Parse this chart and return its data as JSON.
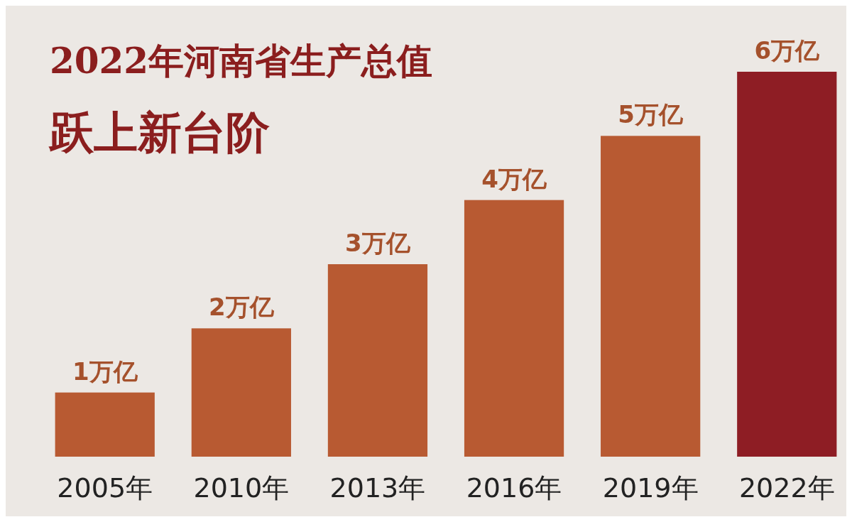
{
  "chart_data": {
    "type": "bar",
    "title": "2022年河南省生产总值跃上新台阶",
    "categories": [
      "2005年",
      "2010年",
      "2013年",
      "2016年",
      "2019年",
      "2022年"
    ],
    "values": [
      1,
      2,
      3,
      4,
      5,
      6
    ],
    "colors": [
      "#b85a32",
      "#b85a32",
      "#b85a32",
      "#b85a32",
      "#b85a32",
      "#8e1d24"
    ],
    "value_labels": [
      "1万亿",
      "2万亿",
      "3万亿",
      "4万亿",
      "5万亿",
      "6万亿"
    ]
  }
}
